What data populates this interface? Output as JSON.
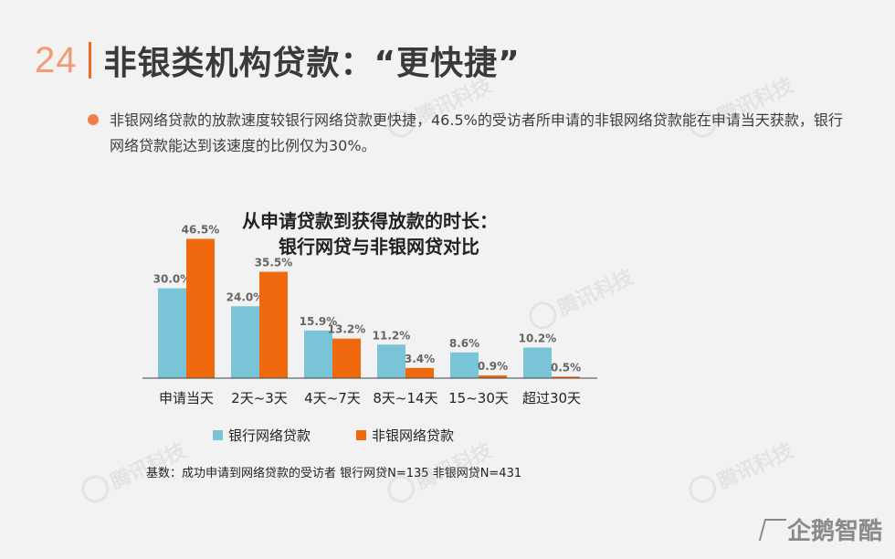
{
  "header": {
    "page_number": "24",
    "title": "非银类机构贷款：“更快捷”"
  },
  "bullet": {
    "text": "非银网络贷款的放款速度较银行网络贷款更快捷，46.5%的受访者所申请的非银网络贷款能在申请当天获款，银行网络贷款能达到该速度的比例仅为30%。"
  },
  "watermark_text": "腾讯科技",
  "brand": "企鹅智酷",
  "chart_data": {
    "type": "bar",
    "title_line1": "从申请贷款到获得放款的时长：",
    "title_line2": "银行网贷与非银网贷对比",
    "categories": [
      "申请当天",
      "2天~3天",
      "4天~7天",
      "8天~14天",
      "15~30天",
      "超过30天"
    ],
    "series": [
      {
        "name": "银行网络贷款",
        "color": "#79c4d6",
        "values": [
          30.0,
          24.0,
          15.9,
          11.2,
          8.6,
          10.2
        ],
        "labels": [
          "30.0%",
          "24.0%",
          "15.9%",
          "11.2%",
          "8.6%",
          "10.2%"
        ]
      },
      {
        "name": "非银网络贷款",
        "color": "#f0690f",
        "values": [
          46.5,
          35.5,
          13.2,
          3.4,
          0.9,
          0.5
        ],
        "labels": [
          "46.5%",
          "35.5%",
          "13.2%",
          "3.4%",
          "0.9%",
          "0.5%"
        ]
      }
    ],
    "ylim": [
      0,
      50
    ],
    "grid": false,
    "legend_position": "bottom"
  },
  "footnote": "基数：成功申请到网络贷款的受访者 银行网贷N=135 非银网贷N=431"
}
